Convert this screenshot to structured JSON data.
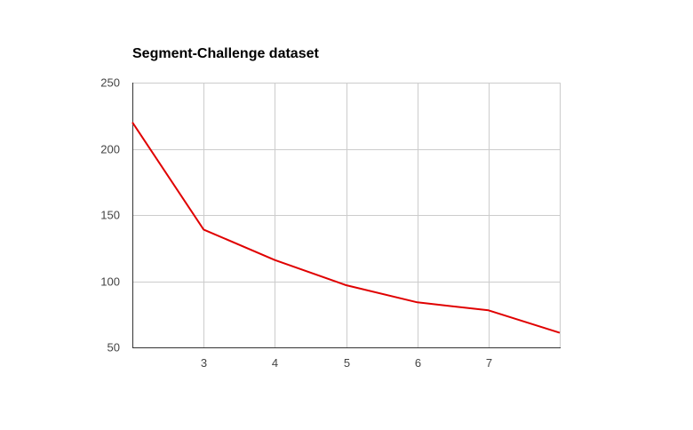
{
  "chart_data": {
    "type": "line",
    "title": "Segment-Challenge dataset",
    "xlabel": "",
    "ylabel": "",
    "x": [
      2,
      3,
      4,
      5,
      6,
      7,
      8
    ],
    "series": [
      {
        "values": [
          220,
          139,
          116,
          97,
          84,
          78,
          61
        ],
        "color": "#e00000"
      }
    ],
    "xlim": [
      2,
      8
    ],
    "ylim": [
      50,
      250
    ],
    "xticks": [
      "3",
      "4",
      "5",
      "6",
      "7"
    ],
    "yticks": [
      "250",
      "200",
      "150",
      "100",
      "50"
    ],
    "grid": true,
    "legend": "none"
  }
}
